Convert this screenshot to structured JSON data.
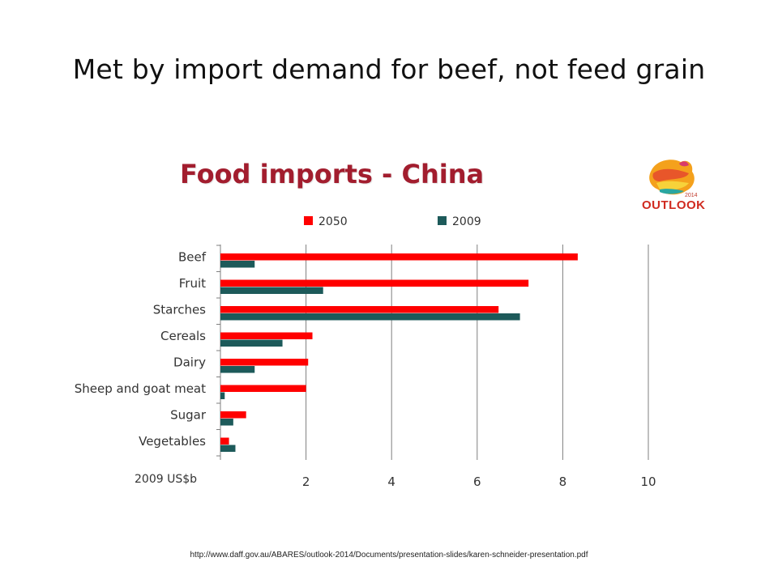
{
  "slide": {
    "title": "Met by import demand for beef, not feed grain",
    "source": "http://www.daff.gov.au/ABARES/outlook-2014/Documents/presentation-slides/karen-schneider-presentation.pdf"
  },
  "logo": {
    "text": "OUTLOOK",
    "year": "2014",
    "icon": "australia-map-logo-icon"
  },
  "colors": {
    "series_2050": "#ff0000",
    "series_2009": "#1d5a5a",
    "title": "#a21d2e",
    "grid": "#7f7f7f"
  },
  "chart_data": {
    "type": "bar",
    "orientation": "horizontal",
    "title": "Food imports - China",
    "xlabel": "2009 US$b",
    "xlim": [
      0,
      10
    ],
    "xticks": [
      2,
      4,
      6,
      8,
      10
    ],
    "grid": true,
    "legend_position": "top",
    "categories": [
      "Beef",
      "Fruit",
      "Starches",
      "Cereals",
      "Dairy",
      "Sheep and goat meat",
      "Sugar",
      "Vegetables"
    ],
    "series": [
      {
        "name": "2050",
        "values": [
          8.35,
          7.2,
          6.5,
          2.15,
          2.05,
          2.0,
          0.6,
          0.2
        ]
      },
      {
        "name": "2009",
        "values": [
          0.8,
          2.4,
          7.0,
          1.45,
          0.8,
          0.1,
          0.3,
          0.35
        ]
      }
    ]
  }
}
